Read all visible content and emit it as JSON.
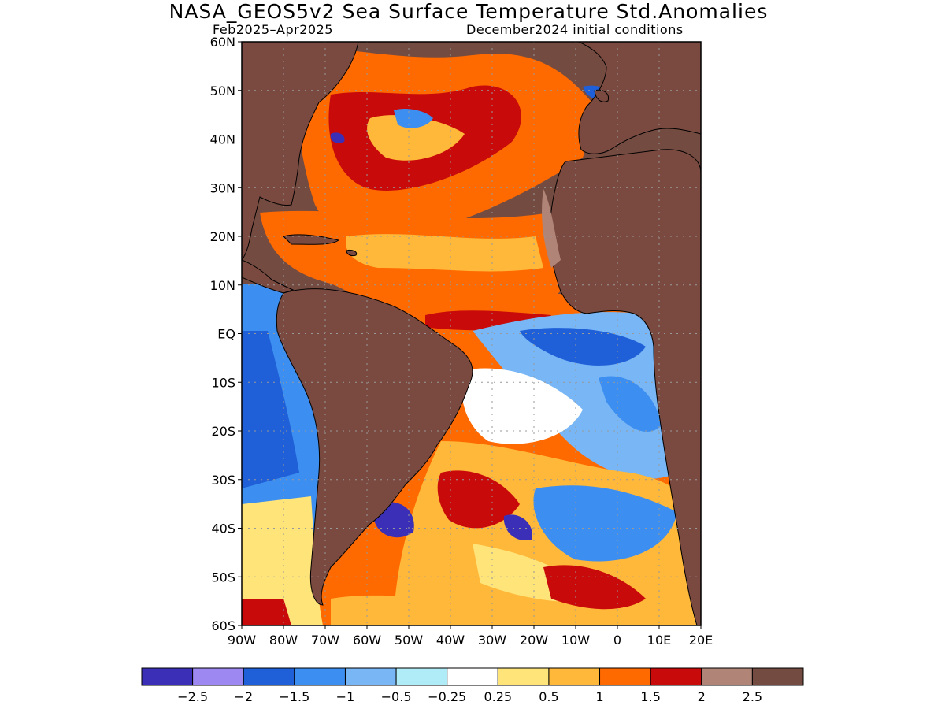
{
  "title": "NASA_GEOS5v2 Sea Surface Temperature Std.Anomalies",
  "subtitle_left": "Feb2025–Apr2025",
  "subtitle_right": "December2024 initial conditions",
  "map": {
    "lat_labels": [
      "60N",
      "50N",
      "40N",
      "30N",
      "20N",
      "10N",
      "EQ",
      "10S",
      "20S",
      "30S",
      "40S",
      "50S",
      "60S"
    ],
    "lon_labels": [
      "90W",
      "80W",
      "70W",
      "60W",
      "50W",
      "40W",
      "30W",
      "20W",
      "10W",
      "0",
      "10E",
      "20E"
    ],
    "lat_range": [
      -60,
      60
    ],
    "lon_range": [
      -90,
      20
    ],
    "land_color": "#7a4a40"
  },
  "colorbar": {
    "colors": [
      "#3b2fb8",
      "#9c88f0",
      "#1f5fd8",
      "#3c8ef0",
      "#78b6f5",
      "#b0ecf8",
      "#ffffff",
      "#ffe47a",
      "#ffb83a",
      "#ff6a00",
      "#c80a0a",
      "#b08578",
      "#744b40"
    ],
    "labels": [
      "−2.5",
      "−2",
      "−1.5",
      "−1",
      "−0.5",
      "−0.25",
      "0.25",
      "0.5",
      "1",
      "1.5",
      "2",
      "2.5"
    ]
  }
}
